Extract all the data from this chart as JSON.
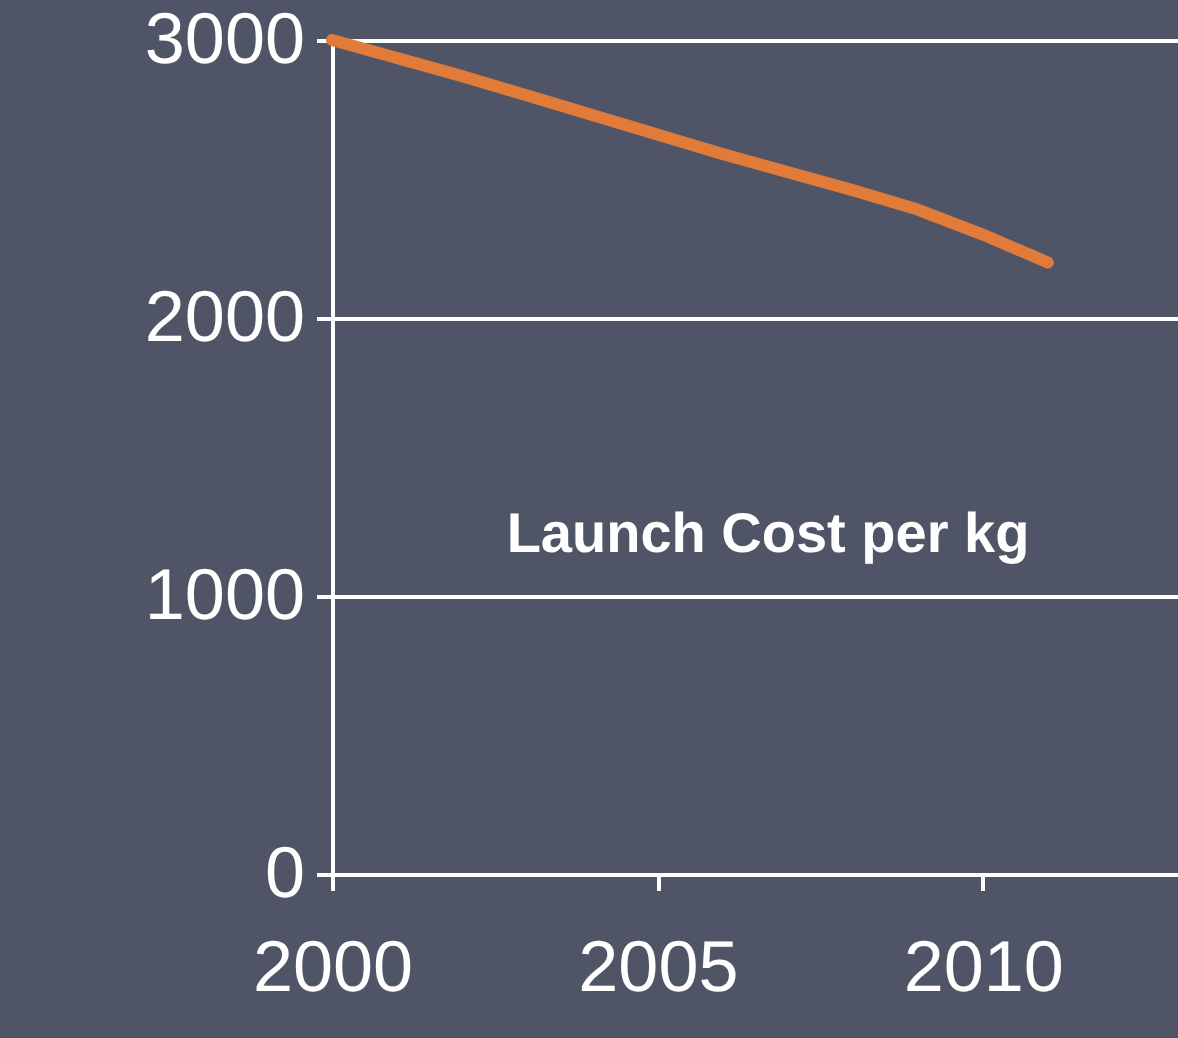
{
  "chart_data": {
    "type": "line",
    "x": [
      2000,
      2002,
      2004,
      2005,
      2006,
      2008,
      2009,
      2010,
      2011
    ],
    "series": [
      {
        "color": "#e07b39",
        "values": [
          3000,
          2870,
          2730,
          2660,
          2590,
          2460,
          2390,
          2300,
          2200
        ]
      }
    ],
    "xlim": [
      2000,
      2013
    ],
    "xticks": [
      2000,
      2005,
      2010
    ],
    "ylim": [
      0,
      3000
    ],
    "yticks": [
      0,
      1000,
      2000,
      3000
    ],
    "grid": "y",
    "marker": "none",
    "line_style": "solid",
    "annotations": [
      "Launch Cost per kg"
    ]
  }
}
